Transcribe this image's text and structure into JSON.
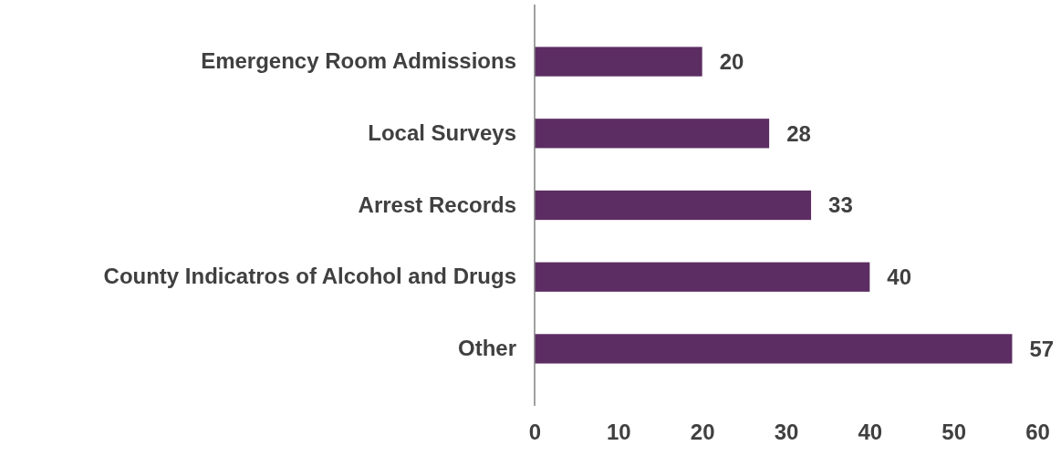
{
  "chart_data": {
    "type": "bar",
    "orientation": "horizontal",
    "categories": [
      "Emergency Room Admissions",
      "Local Surveys",
      "Arrest Records",
      "County Indicatros of Alcohol and Drugs",
      "Other"
    ],
    "values": [
      20,
      28,
      33,
      40,
      57
    ],
    "color": "#5c2d62",
    "xlim": [
      0,
      60
    ],
    "xticks": [
      0,
      10,
      20,
      30,
      40,
      50,
      60
    ],
    "data_labels": true,
    "grid": false
  }
}
